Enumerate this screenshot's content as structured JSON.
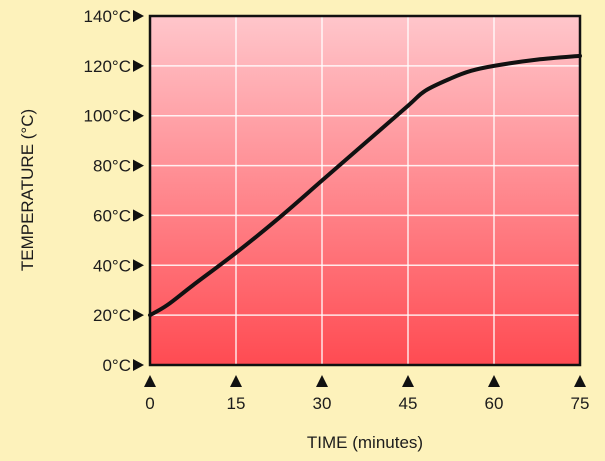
{
  "chart_data": {
    "type": "line",
    "title": "",
    "xlabel": "TIME (minutes)",
    "ylabel": "TEMPERATURE (°C)",
    "xlim": [
      0,
      75
    ],
    "ylim": [
      0,
      140
    ],
    "x_ticks": [
      0,
      15,
      30,
      45,
      60,
      75
    ],
    "x_tick_labels": [
      "0",
      "15",
      "30",
      "45",
      "60",
      "75"
    ],
    "y_ticks": [
      0,
      20,
      40,
      60,
      80,
      100,
      120,
      140
    ],
    "y_tick_labels": [
      "0°C",
      "20°C",
      "40°C",
      "60°C",
      "80°C",
      "100°C",
      "120°C",
      "140°C"
    ],
    "grid": true,
    "series": [
      {
        "x": [
          0,
          3,
          7.5,
          15,
          22.5,
          30,
          37.5,
          45,
          48,
          52.5,
          56,
          60,
          67.5,
          75
        ],
        "values": [
          20,
          24,
          32,
          45,
          59,
          74,
          89,
          104,
          110,
          115,
          118,
          120,
          122.5,
          124
        ]
      }
    ],
    "colors": {
      "plot_top": "#ffc6cb",
      "plot_bottom": "#ff4b52",
      "grid": "#ffffff",
      "line": "#111111",
      "frame": "#111111",
      "background": "#fdf2bb"
    }
  }
}
